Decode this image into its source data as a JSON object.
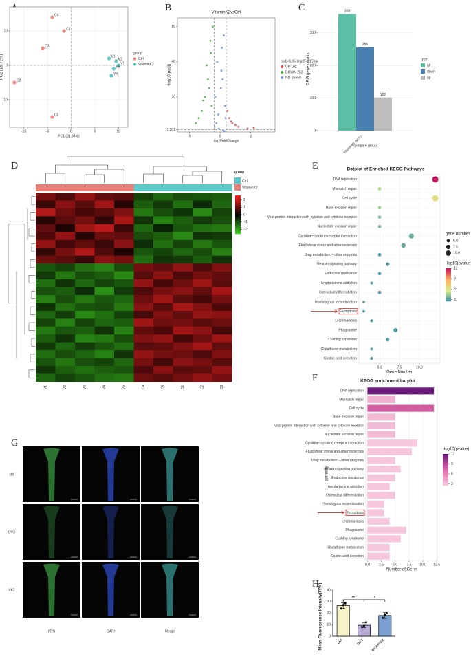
{
  "chart_data": [
    {
      "type": "scatter",
      "label": "A",
      "xlabel": "PC1 (31.34%)",
      "ylabel": "PC2 (15.72%)",
      "legend_title": "group",
      "xlim": [
        -13,
        12
      ],
      "ylim": [
        -18,
        17
      ],
      "xticks": [
        -10,
        -5,
        0,
        5,
        10
      ],
      "yticks": [
        -10,
        0,
        10
      ],
      "grid": true,
      "zero_lines": true,
      "series": [
        {
          "name": "Ctrl",
          "color": "#e8756c",
          "x": [
            -4,
            -1.5,
            -6,
            -12,
            -4
          ],
          "y": [
            14,
            10,
            5,
            -5,
            -15
          ],
          "labels": [
            "C4",
            "C1",
            "C3",
            "C2",
            "C5"
          ]
        },
        {
          "name": "VitaminK2",
          "color": "#3fbfb8",
          "x": [
            8,
            9.5,
            10,
            8.5,
            9
          ],
          "y": [
            2,
            1.2,
            0,
            -3,
            -1
          ],
          "labels": [
            "V1",
            "V2",
            "V3",
            "V4",
            "V5"
          ]
        }
      ]
    },
    {
      "type": "scatter",
      "label": "B",
      "title": "VitaminK2vsCtrl",
      "xlabel": "log2FoldChange",
      "ylabel": "-log10(padj)",
      "legend_title": "padj<0.05 |log2FoldChange|>1",
      "xlim": [
        -7,
        9
      ],
      "ylim": [
        0,
        65
      ],
      "xticks": [
        -5,
        0,
        5
      ],
      "yticks": [
        {
          "value": 1.301,
          "label": "1.301"
        },
        20,
        40,
        60
      ],
      "grid": false,
      "thresholds": {
        "x": [
          -1,
          1
        ],
        "y": 1.301
      },
      "series": [
        {
          "name": "UP 102",
          "color": "#e24a4a",
          "x": [
            1.5,
            2,
            3,
            1.2,
            2.5,
            4.5,
            1.8,
            5.5
          ],
          "y": [
            8,
            5,
            3,
            12,
            4,
            2,
            6,
            2.5
          ]
        },
        {
          "name": "DOWN 256",
          "color": "#3cb43c",
          "x": [
            -1.5,
            -2,
            -2.5,
            -3,
            -1.2,
            -1.8,
            -4,
            -2.2,
            -1.4,
            -3.5,
            -1.6,
            -2.8
          ],
          "y": [
            45,
            30,
            20,
            12,
            60,
            25,
            5,
            38,
            15,
            8,
            52,
            18
          ]
        },
        {
          "name": "NO 26559",
          "color": "#6f93d6",
          "x": [
            -0.5,
            0.2,
            0.6,
            -0.8,
            0.1,
            -0.3,
            0.8,
            0.4,
            -0.6,
            0.3,
            0.9,
            -0.2,
            0.5,
            -0.9,
            0.7
          ],
          "y": [
            40,
            35,
            55,
            20,
            25,
            10,
            15,
            30,
            5,
            48,
            8,
            2,
            1,
            3,
            0.5
          ]
        }
      ]
    },
    {
      "type": "bar",
      "label": "C",
      "xlabel": "compare group",
      "ylabel": "DEG gene counts",
      "legend_title": "type",
      "categories": [
        "VitaminK2vsCtrl"
      ],
      "ylim": [
        0,
        380
      ],
      "yticks": [
        0,
        100,
        200,
        300
      ],
      "grid": true,
      "series": [
        {
          "name": "all",
          "color": "#5cbfa5",
          "values": [
            358
          ]
        },
        {
          "name": "down",
          "color": "#4a80b0",
          "values": [
            256
          ]
        },
        {
          "name": "up",
          "color": "#bdbdbd",
          "values": [
            102
          ]
        }
      ]
    },
    {
      "type": "heatmap",
      "label": "D",
      "legend_title": "group",
      "columns": [
        "V1",
        "V2",
        "V3",
        "V4",
        "V5",
        "C4",
        "C5",
        "C1",
        "C2",
        "C3"
      ],
      "groups": [
        {
          "name": "Ctrl",
          "color": "#5cc8c8",
          "columns": [
            "C4",
            "C5",
            "C1",
            "C2",
            "C3"
          ]
        },
        {
          "name": "VitaminK2",
          "color": "#e8807a",
          "columns": [
            "V1",
            "V2",
            "V3",
            "V4",
            "V5"
          ]
        }
      ],
      "clim": [
        -2.6,
        2.6
      ],
      "colors": [
        "#44dd22",
        "#000000",
        "#ff2222"
      ],
      "cticks": [
        2,
        1,
        0,
        {
          "value": -1,
          "label": "−1"
        },
        {
          "value": -2,
          "label": "−2"
        }
      ],
      "values": [
        [
          1.2,
          0.8,
          1.5,
          1.0,
          0.9,
          -0.8,
          -1.2,
          -0.9,
          -1.0,
          -1.1
        ],
        [
          0.6,
          1.4,
          0.9,
          1.6,
          0.4,
          -1.1,
          -0.7,
          -1.3,
          -0.5,
          -1.2
        ],
        [
          1.8,
          1.1,
          0.7,
          0.9,
          1.3,
          -1.4,
          -0.9,
          -0.6,
          -1.6,
          -0.8
        ],
        [
          0.4,
          0.9,
          1.2,
          0.5,
          1.7,
          -0.6,
          -1.5,
          -1.1,
          -0.7,
          -0.9
        ],
        [
          1.0,
          0.3,
          1.6,
          1.9,
          0.6,
          -1.2,
          -0.4,
          -1.0,
          -1.3,
          -1.4
        ],
        [
          0.8,
          1.5,
          0.4,
          1.1,
          1.0,
          -0.9,
          -1.1,
          -1.6,
          -0.6,
          -0.7
        ],
        [
          1.5,
          0.7,
          1.0,
          0.6,
          1.4,
          -0.5,
          -1.3,
          -0.8,
          -1.4,
          -1.0
        ],
        [
          0.5,
          1.2,
          1.8,
          0.8,
          0.3,
          -1.0,
          -0.8,
          -1.2,
          -0.9,
          -1.5
        ],
        [
          1.1,
          0.9,
          0.6,
          1.4,
          1.2,
          -1.3,
          -0.6,
          -0.7,
          -1.1,
          -0.6
        ],
        [
          -1.0,
          -0.8,
          -1.3,
          -1.5,
          -0.9,
          1.2,
          1.0,
          1.5,
          0.8,
          1.3
        ],
        [
          -0.7,
          -1.4,
          -0.9,
          -1.1,
          -1.6,
          0.9,
          1.4,
          0.8,
          1.2,
          1.0
        ],
        [
          -1.3,
          -0.6,
          -1.2,
          -0.8,
          -1.0,
          1.5,
          0.7,
          1.1,
          1.6,
          0.9
        ],
        [
          -0.9,
          -1.1,
          -0.5,
          -1.7,
          -0.7,
          0.8,
          1.2,
          1.4,
          1.0,
          1.7
        ],
        [
          -1.5,
          -0.9,
          -1.4,
          -1.0,
          -1.2,
          1.1,
          1.6,
          0.9,
          0.7,
          1.2
        ],
        [
          -0.6,
          -1.3,
          -1.0,
          -0.9,
          -1.4,
          1.4,
          0.9,
          1.7,
          1.3,
          0.8
        ],
        [
          -1.2,
          -0.7,
          -1.6,
          -1.3,
          -0.8,
          0.7,
          1.3,
          1.0,
          1.5,
          1.4
        ],
        [
          -0.8,
          -1.5,
          -0.8,
          -1.2,
          -1.1,
          1.6,
          1.1,
          1.2,
          0.9,
          1.1
        ],
        [
          -1.4,
          -1.0,
          -1.1,
          -0.6,
          -1.5,
          1.0,
          0.8,
          1.6,
          1.4,
          0.7
        ],
        [
          -1.1,
          -0.6,
          -1.5,
          -1.4,
          -0.9,
          1.3,
          1.5,
          0.7,
          1.1,
          1.6
        ],
        [
          -0.7,
          -1.2,
          -0.7,
          -1.0,
          -1.3,
          0.9,
          1.0,
          1.3,
          1.7,
          1.0
        ],
        [
          -1.3,
          -0.9,
          -1.2,
          -1.5,
          -0.6,
          1.5,
          1.2,
          1.1,
          0.8,
          1.3
        ],
        [
          -1.0,
          -1.4,
          -0.9,
          -0.8,
          -1.2,
          1.2,
          0.7,
          1.4,
          1.2,
          0.9
        ],
        [
          -0.6,
          -1.1,
          -1.3,
          -1.1,
          -1.0,
          0.8,
          1.4,
          0.9,
          1.0,
          1.5
        ],
        [
          -1.2,
          -0.8,
          -1.0,
          -1.3,
          -1.4,
          1.1,
          0.9,
          1.2,
          1.5,
          1.2
        ]
      ]
    },
    {
      "type": "dot",
      "label": "E",
      "title": "Dotplot of Enriched KEGG Pathways",
      "xlabel": "Gene Number",
      "size_title": "gene number",
      "color_title": "-log10(pvalue)",
      "categories": [
        "DNA replication",
        "Mismatch repair",
        "Cell cycle",
        "Base excision repair",
        "Viral protein interaction with cytokine and cytokine receptor",
        "Nucleotide excision repair",
        "Cytokine−cytokine receptor interaction",
        "Fluid shear stress and atherosclerosis",
        "Drug metabolism − other enzymes",
        "Relaxin signaling pathway",
        "Endocrine resistance",
        "Amphetamine addiction",
        "Osteoclast differentiation",
        "Homologous recombination",
        "Ferroptosis",
        "Leishmaniasis",
        "Phagosome",
        "Cushing syndrome",
        "Glutathione metabolism",
        "Gastric acid secretion"
      ],
      "values": [
        12,
        5,
        12,
        5,
        5,
        5,
        9,
        8,
        5,
        6,
        5,
        4,
        5,
        3,
        3,
        4,
        7,
        6,
        4,
        4
      ],
      "pvalue": [
        12,
        5,
        6.5,
        4.5,
        4,
        4,
        3.5,
        3.5,
        3,
        3,
        3,
        3,
        3,
        3,
        3,
        3,
        3,
        3,
        3,
        3
      ],
      "highlight": "Ferroptosis",
      "xlim": [
        2.4,
        12.6
      ],
      "xticks": [
        {
          "value": 5,
          "label": "5.0"
        },
        7.5,
        {
          "value": 10,
          "label": "10.0"
        }
      ],
      "grid": true,
      "size_ticks": [
        {
          "value": 5,
          "label": "5.0"
        },
        7.5,
        {
          "value": 10,
          "label": "10.0"
        }
      ],
      "clim": [
        2.5,
        12
      ],
      "colors": [
        "#3a8ea8",
        "#d6ee8a",
        "#fdae61",
        "#c2185b"
      ],
      "cticks": [
        12,
        9,
        6,
        3
      ]
    },
    {
      "type": "barh",
      "label": "F",
      "title": "KEGG enrichment barplot",
      "xlabel": "Number of Gene",
      "ylabel": "pathway",
      "color_title": "-log10(pvalue)",
      "categories": [
        "DNA replication",
        "Mismatch repair",
        "Cell cycle",
        "Base excision repair",
        "Viral protein interaction with cytokine and cytokine receptor",
        "Nucleotide excision repair",
        "Cytokine−cytokine receptor interaction",
        "Fluid shear stress and atherosclerosis",
        "Drug metabolism − other enzymes",
        "Relaxin signaling pathway",
        "Endocrine resistance",
        "Amphetamine addiction",
        "Osteoclast differentiation",
        "Homologous recombination",
        "Ferroptosis",
        "Leishmaniasis",
        "Phagosome",
        "Cushing syndrome",
        "Glutathione metabolism",
        "Gastric acid secretion"
      ],
      "values": [
        12,
        5,
        12,
        5,
        5,
        5,
        9,
        8,
        5,
        6,
        5,
        4,
        5,
        3,
        3,
        4,
        7,
        6,
        4,
        4
      ],
      "pvalue": [
        12,
        4,
        8,
        3.5,
        3.5,
        3.5,
        3,
        3,
        3,
        3,
        3,
        3,
        3,
        3,
        3,
        3,
        3,
        3,
        3,
        3
      ],
      "highlight": "Ferroptosis",
      "xlim": [
        -0.3,
        12.6
      ],
      "xticks": [
        {
          "value": 0,
          "label": "0.0"
        },
        2.5,
        {
          "value": 5,
          "label": "5.0"
        },
        7.5,
        {
          "value": 10,
          "label": "10.0"
        },
        12.5
      ],
      "grid": true,
      "clim": [
        2.5,
        12
      ],
      "colors": [
        "#f8d2e2",
        "#e26aa8",
        "#6a1b7a"
      ],
      "cticks": [
        12,
        9,
        6,
        3
      ]
    },
    {
      "type": "image",
      "label": "G",
      "rows": [
        "ctrl",
        "OVX",
        "VK2"
      ],
      "columns": [
        "FPN",
        "DAPI",
        "Merge"
      ],
      "colors": [
        "#3aa046",
        "#3050d0",
        "#3a9e9a"
      ]
    },
    {
      "type": "bar",
      "label": "H",
      "ylabel": "Mean Fluorescence Intensity(FPN)",
      "categories": [
        "ctrl",
        "OVX",
        "OVX+VK2"
      ],
      "values": [
        26.5,
        9.5,
        18
      ],
      "errors": [
        2.5,
        2,
        2.5
      ],
      "colors": [
        "#f7f3c8",
        "#b7a8d6",
        "#7a9fd0"
      ],
      "points": [
        [
          24,
          27,
          28.5
        ],
        [
          8,
          9,
          12
        ],
        [
          16,
          18.5,
          20
        ]
      ],
      "ylim": [
        0,
        40
      ],
      "yticks": [
        0,
        10,
        20,
        30,
        40
      ],
      "grid": false,
      "significance": [
        {
          "label": "***",
          "from": "ctrl",
          "to": "OVX"
        },
        {
          "label": "*",
          "from": "OVX",
          "to": "OVX+VK2"
        }
      ]
    }
  ]
}
